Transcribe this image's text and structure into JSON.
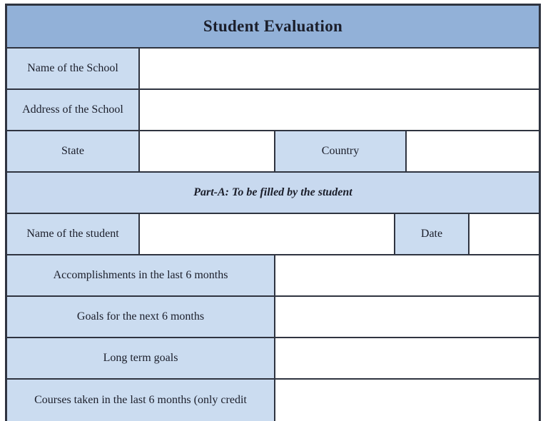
{
  "form": {
    "title": "Student Evaluation",
    "part_a_banner": "Part-A: To be filled by the student",
    "school_name": {
      "label": "Name of the School",
      "value": ""
    },
    "school_address": {
      "label": "Address of the School",
      "value": ""
    },
    "state": {
      "label": "State",
      "value": ""
    },
    "country": {
      "label": "Country",
      "value": ""
    },
    "student_name": {
      "label": "Name of the student",
      "value": ""
    },
    "date": {
      "label": "Date",
      "value": ""
    },
    "accomplishments": {
      "label": "Accomplishments in the last 6 months",
      "value": ""
    },
    "goals_next_6_months": {
      "label": "Goals for the next 6 months",
      "value": ""
    },
    "long_term_goals": {
      "label": "Long term goals",
      "value": ""
    },
    "courses_taken": {
      "label": "Courses taken in the last 6 months (only credit",
      "value": ""
    }
  },
  "colors": {
    "header_bg": "#92b1d8",
    "label_bg": "#cbdcf0",
    "banner_bg": "#c8d9ef",
    "border": "#2f3440",
    "text": "#1b1e2a"
  }
}
